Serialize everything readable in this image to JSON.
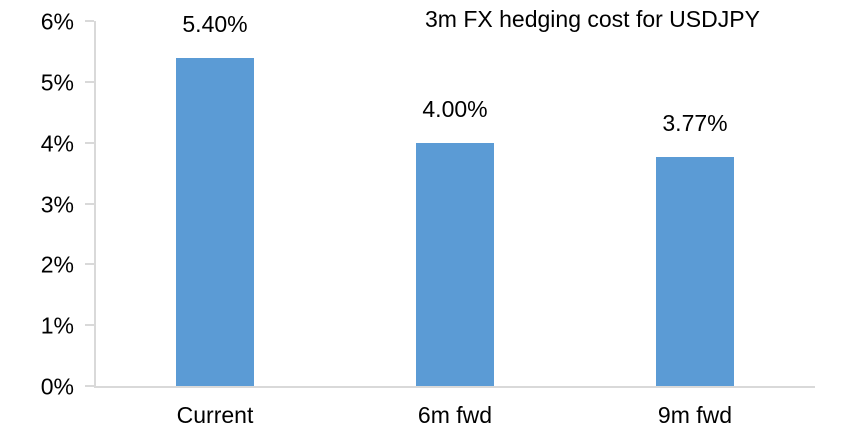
{
  "chart_data": {
    "type": "bar",
    "title": "3m FX hedging cost for USDJPY",
    "categories": [
      "Current",
      "6m fwd",
      "9m fwd"
    ],
    "values": [
      5.4,
      4.0,
      3.77
    ],
    "data_labels": [
      "5.40%",
      "4.00%",
      "3.77%"
    ],
    "y_ticks": [
      "0%",
      "1%",
      "2%",
      "3%",
      "4%",
      "5%",
      "6%"
    ],
    "ylim": [
      0,
      6
    ],
    "xlabel": "",
    "ylabel": "",
    "legend": "none",
    "grid": false,
    "bar_color": "#5B9BD5",
    "axis_color": "#D9D9D9",
    "text_color": "#000000"
  }
}
